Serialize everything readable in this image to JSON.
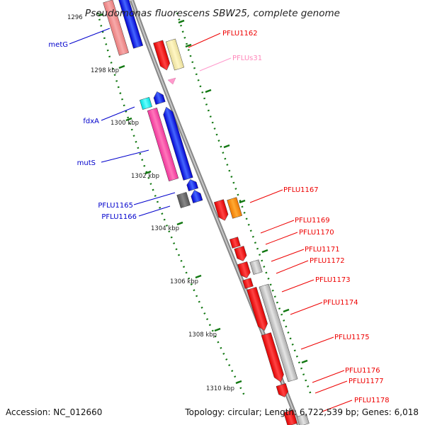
{
  "title": "Pseudomonas fluorescens SBW25, complete genome",
  "footer": {
    "accession": "Accession: NC_012660",
    "topology": "Topology: circular; Length: 6,722,539 bp; Genes: 6,018"
  },
  "kbp_ticks": [
    "1296",
    "1298 kbp",
    "1300 kbp",
    "1302 kbp",
    "1304 kbp",
    "1306 kbp",
    "1308 kbp",
    "1310 kbp"
  ],
  "left_labels": [
    "metG",
    "fdxA",
    "mutS",
    "PFLU1165",
    "PFLU1166"
  ],
  "right_labels": [
    "PFLU1162",
    "PFLUs31",
    "PFLU1167",
    "PFLU1169",
    "PFLU1170",
    "PFLU1171",
    "PFLU1172",
    "PFLU1173",
    "PFLU1174",
    "PFLU1175",
    "PFLU1176",
    "PFLU1177",
    "PFLU1178"
  ],
  "colors": {
    "reverse_gene": "#0000ee",
    "forward_gene": "#ee0000",
    "rna_gene": "#ff99cc",
    "backbone": "#999999",
    "scale_dots": "#117711"
  }
}
